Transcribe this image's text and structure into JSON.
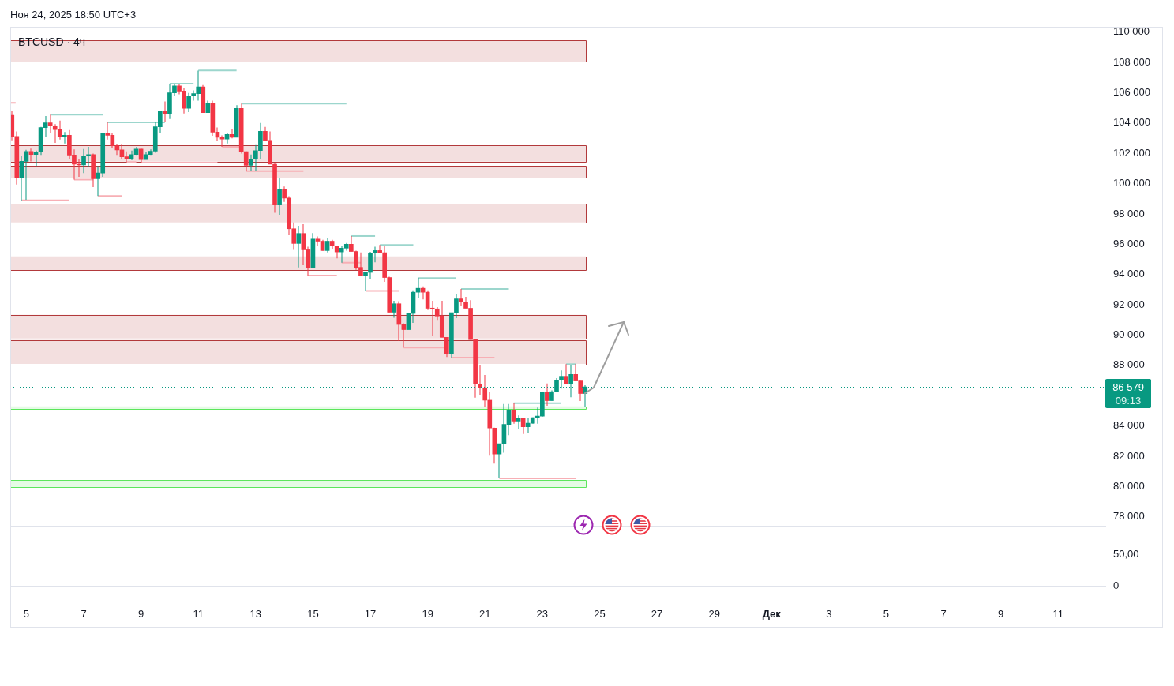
{
  "chart_data": [
    {
      "type": "candlestick",
      "title": "BTCUSD · 4ч",
      "annotations": [
        "Ноя 24, 2025 18:50 UTC+3",
        "09:13"
      ],
      "x": [
        "2025-11-04T12:00",
        "2025-11-04T16:00",
        "2025-11-04T20:00",
        "2025-11-05T00:00",
        "2025-11-05T04:00",
        "2025-11-05T08:00",
        "2025-11-05T12:00",
        "2025-11-05T16:00",
        "2025-11-05T20:00",
        "2025-11-06T00:00",
        "2025-11-06T04:00",
        "2025-11-06T08:00",
        "2025-11-06T12:00",
        "2025-11-06T16:00",
        "2025-11-06T20:00",
        "2025-11-07T00:00",
        "2025-11-07T04:00",
        "2025-11-07T08:00",
        "2025-11-07T12:00",
        "2025-11-07T16:00",
        "2025-11-07T20:00",
        "2025-11-08T00:00",
        "2025-11-08T04:00",
        "2025-11-08T08:00",
        "2025-11-08T12:00",
        "2025-11-08T16:00",
        "2025-11-08T20:00",
        "2025-11-09T00:00",
        "2025-11-09T04:00",
        "2025-11-09T08:00",
        "2025-11-09T12:00",
        "2025-11-09T16:00",
        "2025-11-09T20:00",
        "2025-11-10T00:00",
        "2025-11-10T04:00",
        "2025-11-10T08:00",
        "2025-11-10T12:00",
        "2025-11-10T16:00",
        "2025-11-10T20:00",
        "2025-11-11T00:00",
        "2025-11-11T04:00",
        "2025-11-11T08:00",
        "2025-11-11T12:00",
        "2025-11-11T16:00",
        "2025-11-11T20:00",
        "2025-11-12T00:00",
        "2025-11-12T04:00",
        "2025-11-12T08:00",
        "2025-11-12T12:00",
        "2025-11-12T16:00",
        "2025-11-12T20:00",
        "2025-11-13T00:00",
        "2025-11-13T04:00",
        "2025-11-13T08:00",
        "2025-11-13T12:00",
        "2025-11-13T16:00",
        "2025-11-13T20:00",
        "2025-11-14T00:00",
        "2025-11-14T04:00",
        "2025-11-14T08:00",
        "2025-11-14T12:00",
        "2025-11-14T16:00",
        "2025-11-14T20:00",
        "2025-11-15T00:00",
        "2025-11-15T04:00",
        "2025-11-15T08:00",
        "2025-11-15T12:00",
        "2025-11-15T16:00",
        "2025-11-15T20:00",
        "2025-11-16T00:00",
        "2025-11-16T04:00",
        "2025-11-16T08:00",
        "2025-11-16T12:00",
        "2025-11-16T16:00",
        "2025-11-16T20:00",
        "2025-11-17T00:00",
        "2025-11-17T04:00",
        "2025-11-17T08:00",
        "2025-11-17T12:00",
        "2025-11-17T16:00",
        "2025-11-17T20:00",
        "2025-11-18T00:00",
        "2025-11-18T04:00",
        "2025-11-18T08:00",
        "2025-11-18T12:00",
        "2025-11-18T16:00",
        "2025-11-18T20:00",
        "2025-11-19T00:00",
        "2025-11-19T04:00",
        "2025-11-19T08:00",
        "2025-11-19T12:00",
        "2025-11-19T16:00",
        "2025-11-19T20:00",
        "2025-11-20T00:00",
        "2025-11-20T04:00",
        "2025-11-20T08:00",
        "2025-11-20T12:00",
        "2025-11-20T16:00",
        "2025-11-20T20:00",
        "2025-11-21T00:00",
        "2025-11-21T04:00",
        "2025-11-21T08:00",
        "2025-11-21T12:00",
        "2025-11-21T16:00",
        "2025-11-21T20:00",
        "2025-11-22T00:00",
        "2025-11-22T04:00",
        "2025-11-22T08:00",
        "2025-11-22T12:00",
        "2025-11-22T16:00",
        "2025-11-22T20:00",
        "2025-11-23T00:00",
        "2025-11-23T04:00",
        "2025-11-23T08:00",
        "2025-11-23T12:00",
        "2025-11-23T16:00",
        "2025-11-23T20:00",
        "2025-11-24T00:00",
        "2025-11-24T04:00",
        "2025-11-24T08:00",
        "2025-11-24T12:00"
      ],
      "ohlc": [
        [
          104510,
          104770,
          102860,
          103110
        ],
        [
          103110,
          103450,
          99940,
          100400
        ],
        [
          100400,
          101840,
          98880,
          101470
        ],
        [
          101470,
          102230,
          98930,
          102130
        ],
        [
          102130,
          102310,
          101470,
          101920
        ],
        [
          101920,
          102180,
          101160,
          102080
        ],
        [
          102080,
          103750,
          101890,
          103700
        ],
        [
          103700,
          104460,
          103060,
          104010
        ],
        [
          104010,
          104550,
          103310,
          103820
        ],
        [
          103820,
          103920,
          102690,
          103570
        ],
        [
          103570,
          104160,
          102910,
          103110
        ],
        [
          103110,
          103400,
          102650,
          103190
        ],
        [
          103190,
          103530,
          101590,
          101890
        ],
        [
          101890,
          102260,
          100270,
          101280
        ],
        [
          101280,
          101590,
          100450,
          101230
        ],
        [
          101230,
          102280,
          100690,
          101820
        ],
        [
          101820,
          102430,
          101110,
          101920
        ],
        [
          101920,
          101980,
          99770,
          100320
        ],
        [
          100320,
          101160,
          99180,
          100700
        ],
        [
          100700,
          103330,
          100450,
          103300
        ],
        [
          103300,
          104040,
          102910,
          103190
        ],
        [
          103190,
          103330,
          102380,
          102500
        ],
        [
          102500,
          102600,
          101890,
          102230
        ],
        [
          102230,
          102570,
          101640,
          101770
        ],
        [
          101770,
          102130,
          101420,
          101620
        ],
        [
          101620,
          102180,
          101540,
          101920
        ],
        [
          101920,
          102430,
          101890,
          102280
        ],
        [
          102280,
          102300,
          101370,
          101590
        ],
        [
          101590,
          102080,
          101590,
          101920
        ],
        [
          101920,
          102260,
          101890,
          102140
        ],
        [
          102140,
          104070,
          102040,
          103750
        ],
        [
          103750,
          104770,
          103310,
          104770
        ],
        [
          104770,
          105430,
          104070,
          104630
        ],
        [
          104630,
          106580,
          104260,
          105990
        ],
        [
          105990,
          106580,
          105780,
          106450
        ],
        [
          106450,
          106580,
          105900,
          106110
        ],
        [
          106110,
          106280,
          104630,
          104970
        ],
        [
          104970,
          105990,
          104720,
          105780
        ],
        [
          105780,
          106160,
          105480,
          105940
        ],
        [
          105940,
          107460,
          105480,
          106390
        ],
        [
          106390,
          106500,
          104680,
          104680
        ],
        [
          104680,
          105480,
          104680,
          105280
        ],
        [
          105280,
          105480,
          103160,
          103400
        ],
        [
          103400,
          103700,
          102820,
          103060
        ],
        [
          103060,
          103190,
          102430,
          102940
        ],
        [
          102940,
          103330,
          102650,
          103250
        ],
        [
          103250,
          103600,
          102990,
          103060
        ],
        [
          103060,
          105180,
          103060,
          104970
        ],
        [
          104970,
          105280,
          101980,
          102110
        ],
        [
          102110,
          102130,
          100820,
          101210
        ],
        [
          101210,
          101920,
          100870,
          101620
        ],
        [
          101620,
          102550,
          100870,
          102180
        ],
        [
          102180,
          104010,
          101590,
          103450
        ],
        [
          103450,
          103750,
          102860,
          102860
        ],
        [
          102860,
          103450,
          101280,
          101280
        ],
        [
          101280,
          101330,
          98080,
          98590
        ],
        [
          98590,
          100400,
          97950,
          99590
        ],
        [
          99590,
          99810,
          98790,
          99050
        ],
        [
          99050,
          99170,
          96590,
          97020
        ],
        [
          97020,
          97440,
          95630,
          96050
        ],
        [
          96050,
          97220,
          94470,
          96710
        ],
        [
          96710,
          97320,
          94610,
          95630
        ],
        [
          95630,
          95830,
          93930,
          94470
        ],
        [
          94470,
          96730,
          94470,
          96340
        ],
        [
          96340,
          96510,
          95880,
          96200
        ],
        [
          96200,
          96290,
          95580,
          95580
        ],
        [
          95580,
          96390,
          95460,
          96200
        ],
        [
          96200,
          96290,
          95690,
          95880
        ],
        [
          95880,
          95910,
          95070,
          95490
        ],
        [
          95490,
          95910,
          94780,
          95740
        ],
        [
          95740,
          96080,
          95580,
          96000
        ],
        [
          96000,
          96540,
          95520,
          95520
        ],
        [
          95520,
          95580,
          94310,
          94470
        ],
        [
          94470,
          95460,
          93920,
          93920
        ],
        [
          93920,
          94170,
          92920,
          94140
        ],
        [
          94140,
          95490,
          93710,
          95410
        ],
        [
          95410,
          95830,
          94810,
          95580
        ],
        [
          95580,
          95950,
          95440,
          95440
        ],
        [
          95440,
          95880,
          93510,
          93800
        ],
        [
          93800,
          93850,
          91510,
          91510
        ],
        [
          91510,
          92270,
          91140,
          92070
        ],
        [
          92070,
          92240,
          89600,
          90700
        ],
        [
          90700,
          90780,
          89180,
          90360
        ],
        [
          90360,
          91430,
          90360,
          91430
        ],
        [
          91430,
          92950,
          90800,
          92830
        ],
        [
          92830,
          93760,
          92440,
          93090
        ],
        [
          93090,
          93210,
          92360,
          92830
        ],
        [
          92830,
          92950,
          91650,
          91770
        ],
        [
          91770,
          92270,
          89950,
          91730
        ],
        [
          91730,
          91850,
          91000,
          91260
        ],
        [
          91260,
          92270,
          89850,
          89850
        ],
        [
          89850,
          89850,
          88550,
          88750
        ],
        [
          88750,
          91480,
          88510,
          91480
        ],
        [
          91480,
          92700,
          91120,
          92390
        ],
        [
          92390,
          93040,
          91930,
          92190
        ],
        [
          92190,
          92530,
          91770,
          91770
        ],
        [
          91770,
          92300,
          89700,
          89700
        ],
        [
          89700,
          89730,
          85870,
          86770
        ],
        [
          86770,
          88040,
          86010,
          86520
        ],
        [
          86520,
          87360,
          85280,
          85700
        ],
        [
          85700,
          86230,
          82030,
          83860
        ],
        [
          83860,
          83890,
          81520,
          82150
        ],
        [
          82150,
          82830,
          80540,
          82830
        ],
        [
          82830,
          85450,
          82230,
          84100
        ],
        [
          84100,
          85450,
          83390,
          85040
        ],
        [
          85040,
          85500,
          84150,
          84320
        ],
        [
          84320,
          84690,
          83810,
          84490
        ],
        [
          84490,
          84490,
          83470,
          83940
        ],
        [
          83940,
          84520,
          83550,
          84180
        ],
        [
          84180,
          84570,
          84150,
          84550
        ],
        [
          84550,
          85210,
          84150,
          84650
        ],
        [
          84650,
          86230,
          84620,
          86230
        ],
        [
          86230,
          86810,
          85330,
          85670
        ],
        [
          85670,
          86350,
          85670,
          86260
        ],
        [
          86260,
          87160,
          86230,
          87030
        ],
        [
          87030,
          87670,
          86470,
          87280
        ],
        [
          87280,
          88080,
          86770,
          86770
        ],
        [
          86770,
          87990,
          85890,
          87400
        ],
        [
          87400,
          88080,
          86970,
          86970
        ],
        [
          86970,
          86970,
          85640,
          86140
        ],
        [
          86140,
          86690,
          85250,
          86579
        ]
      ],
      "colors": [
        "#f23645",
        "#f23645",
        "#089981",
        "#089981",
        "#f23645",
        "#089981",
        "#089981",
        "#089981",
        "#f23645",
        "#f23645",
        "#f23645",
        "#089981",
        "#f23645",
        "#f23645",
        "#f23645",
        "#089981",
        "#089981",
        "#f23645",
        "#089981",
        "#089981",
        "#f23645",
        "#f23645",
        "#f23645",
        "#f23645",
        "#f23645",
        "#089981",
        "#089981",
        "#f23645",
        "#089981",
        "#089981",
        "#089981",
        "#089981",
        "#f23645",
        "#089981",
        "#089981",
        "#f23645",
        "#f23645",
        "#089981",
        "#089981",
        "#089981",
        "#f23645",
        "#089981",
        "#f23645",
        "#f23645",
        "#f23645",
        "#089981",
        "#f23645",
        "#089981",
        "#f23645",
        "#f23645",
        "#089981",
        "#089981",
        "#089981",
        "#f23645",
        "#f23645",
        "#f23645",
        "#089981",
        "#f23645",
        "#f23645",
        "#f23645",
        "#089981",
        "#f23645",
        "#f23645",
        "#089981",
        "#f23645",
        "#f23645",
        "#089981",
        "#f23645",
        "#f23645",
        "#089981",
        "#089981",
        "#f23645",
        "#f23645",
        "#f23645",
        "#089981",
        "#089981",
        "#089981",
        "#f23645",
        "#f23645",
        "#f23645",
        "#089981",
        "#f23645",
        "#f23645",
        "#089981",
        "#089981",
        "#089981",
        "#f23645",
        "#f23645",
        "#f23645",
        "#f23645",
        "#f23645",
        "#f23645",
        "#089981",
        "#089981",
        "#f23645",
        "#f23645",
        "#f23645",
        "#f23645",
        "#f23645",
        "#f23645",
        "#f23645",
        "#f23645",
        "#089981",
        "#089981",
        "#089981",
        "#f23645",
        "#089981",
        "#f23645",
        "#089981",
        "#089981",
        "#089981",
        "#089981",
        "#f23645",
        "#089981",
        "#089981",
        "#089981",
        "#f23645",
        "#089981",
        "#f23645",
        "#f23645",
        "#089981"
      ],
      "series": [
        {
          "type": "line",
          "x": [
            "2025-11-04T10:30",
            "2025-11-04T15:00"
          ],
          "values": [
            105330,
            105330
          ],
          "color": "#f7afb5"
        },
        {
          "type": "line",
          "x": [
            "2025-11-05T20:00",
            "2025-11-07T16:00"
          ],
          "values": [
            104550,
            104550
          ],
          "color": "#9cd6cd"
        },
        {
          "type": "line",
          "x": [
            "2025-11-07T20:00",
            "2025-11-09T20:00"
          ],
          "values": [
            104040,
            104040
          ],
          "color": "#9cd6cd"
        },
        {
          "type": "line",
          "x": [
            "2025-11-04T20:00",
            "2025-11-06T12:00"
          ],
          "values": [
            98900,
            98900
          ],
          "color": "#f7afb5"
        },
        {
          "type": "line",
          "x": [
            "2025-11-06T16:00",
            "2025-11-07T08:00"
          ],
          "values": [
            100270,
            100270
          ],
          "color": "#f7afb5"
        },
        {
          "type": "line",
          "x": [
            "2025-11-07T12:00",
            "2025-11-08T08:00"
          ],
          "values": [
            99180,
            99180
          ],
          "color": "#f7afb5"
        },
        {
          "type": "line",
          "x": [
            "2025-11-08T12:00",
            "2025-11-08T20:00"
          ],
          "values": [
            101420,
            101420
          ],
          "color": "#f7afb5"
        },
        {
          "type": "line",
          "x": [
            "2025-11-09T00:00",
            "2025-11-11T16:00"
          ],
          "values": [
            101380,
            101380
          ],
          "color": "#f7afb5"
        },
        {
          "type": "line",
          "x": [
            "2025-11-10T00:00",
            "2025-11-10T20:00"
          ],
          "values": [
            106600,
            106600
          ],
          "color": "#9cd6cd"
        },
        {
          "type": "line",
          "x": [
            "2025-11-11T00:00",
            "2025-11-12T08:00"
          ],
          "values": [
            107470,
            107470
          ],
          "color": "#9cd6cd"
        },
        {
          "type": "line",
          "x": [
            "2025-11-11T20:00",
            "2025-11-12T12:00"
          ],
          "values": [
            102430,
            102430
          ],
          "color": "#f7afb5"
        },
        {
          "type": "line",
          "x": [
            "2025-11-12T12:00",
            "2025-11-16T04:00"
          ],
          "values": [
            105280,
            105280
          ],
          "color": "#9cd6cd"
        },
        {
          "type": "line",
          "x": [
            "2025-11-12T16:00",
            "2025-11-14T16:00"
          ],
          "values": [
            100820,
            100820
          ],
          "color": "#f7afb5"
        },
        {
          "type": "line",
          "x": [
            "2025-11-14T20:00",
            "2025-11-15T20:00"
          ],
          "values": [
            93930,
            93930
          ],
          "color": "#f7afb5"
        },
        {
          "type": "line",
          "x": [
            "2025-11-16T00:00",
            "2025-11-16T16:00"
          ],
          "values": [
            94780,
            94780
          ],
          "color": "#f7afb5"
        },
        {
          "type": "line",
          "x": [
            "2025-11-16T08:00",
            "2025-11-17T04:00"
          ],
          "values": [
            96540,
            96540
          ],
          "color": "#9cd6cd"
        },
        {
          "type": "line",
          "x": [
            "2025-11-17T08:00",
            "2025-11-18T12:00"
          ],
          "values": [
            95950,
            95950
          ],
          "color": "#9cd6cd"
        },
        {
          "type": "line",
          "x": [
            "2025-11-16T20:00",
            "2025-11-18T00:00"
          ],
          "values": [
            92920,
            92920
          ],
          "color": "#f7afb5"
        },
        {
          "type": "line",
          "x": [
            "2025-11-18T16:00",
            "2025-11-20T00:00"
          ],
          "values": [
            93760,
            93760
          ],
          "color": "#9cd6cd"
        },
        {
          "type": "line",
          "x": [
            "2025-11-18T04:00",
            "2025-11-19T16:00"
          ],
          "values": [
            89180,
            89180
          ],
          "color": "#f7afb5"
        },
        {
          "type": "line",
          "x": [
            "2025-11-20T04:00",
            "2025-11-21T20:00"
          ],
          "values": [
            93040,
            93040
          ],
          "color": "#9cd6cd"
        },
        {
          "type": "line",
          "x": [
            "2025-11-19T20:00",
            "2025-11-21T08:00"
          ],
          "values": [
            88510,
            88510
          ],
          "color": "#f7afb5"
        },
        {
          "type": "line",
          "x": [
            "2025-11-22T00:00",
            "2025-11-23T16:00"
          ],
          "values": [
            85500,
            85500
          ],
          "color": "#9cd6cd"
        },
        {
          "type": "line",
          "x": [
            "2025-11-23T20:00",
            "2025-11-24T04:00"
          ],
          "values": [
            88080,
            88080
          ],
          "color": "#9cd6cd"
        },
        {
          "type": "line",
          "x": [
            "2025-11-21T12:00",
            "2025-11-24T04:00"
          ],
          "values": [
            80540,
            80540
          ],
          "color": "#f7afb5"
        }
      ],
      "bands": [
        {
          "axis": "y",
          "from": 108020,
          "to": 109440,
          "color": "#b2393b"
        },
        {
          "axis": "y",
          "from": 101450,
          "to": 102520,
          "color": "#b2393b"
        },
        {
          "axis": "y",
          "from": 100360,
          "to": 101160,
          "color": "#b2393b"
        },
        {
          "axis": "y",
          "from": 97440,
          "to": 98670,
          "color": "#b2393b"
        },
        {
          "axis": "y",
          "from": 94290,
          "to": 95200,
          "color": "#b2393b"
        },
        {
          "axis": "y",
          "from": 89770,
          "to": 91340,
          "color": "#b2393b"
        },
        {
          "axis": "y",
          "from": 88090,
          "to": 89680,
          "color": "#b2393b"
        },
        {
          "axis": "y",
          "from": 79970,
          "to": 80420,
          "color": "#5ce65c"
        },
        {
          "axis": "y",
          "from": 85130,
          "to": 85300,
          "color": "#5ce65c"
        }
      ],
      "ref_lines": [
        {
          "axis": "y",
          "value": 86579,
          "label": "86 579",
          "color": "#089981",
          "line_style": "dotted"
        }
      ],
      "xlim": [
        "2025-11-04T10:30",
        "2025-12-12T15:30"
      ],
      "tick_labels": "y",
      "ylim": [
        77400,
        110350
      ],
      "yticks": [
        {
          "value": 78000,
          "label": "78 000"
        },
        {
          "value": 80000,
          "label": "80 000"
        },
        {
          "value": 82000,
          "label": "82 000"
        },
        {
          "value": 84000,
          "label": "84 000"
        },
        {
          "value": 88000,
          "label": "88 000"
        },
        {
          "value": 90000,
          "label": "90 000"
        },
        {
          "value": 92000,
          "label": "92 000"
        },
        {
          "value": 94000,
          "label": "94 000"
        },
        {
          "value": 96000,
          "label": "96 000"
        },
        {
          "value": 98000,
          "label": "98 000"
        },
        {
          "value": 100000,
          "label": "100 000"
        },
        {
          "value": 102000,
          "label": "102 000"
        },
        {
          "value": 104000,
          "label": "104 000"
        },
        {
          "value": 106000,
          "label": "106 000"
        },
        {
          "value": 108000,
          "label": "108 000"
        },
        {
          "value": 110000,
          "label": "110 000"
        }
      ]
    },
    {
      "type": "line",
      "xlim": [
        "2025-11-04T10:30",
        "2025-12-12T15:30"
      ],
      "xticks": [
        {
          "value": "2025-11-05",
          "label": "5"
        },
        {
          "value": "2025-11-07",
          "label": "7"
        },
        {
          "value": "2025-11-09",
          "label": "9"
        },
        {
          "value": "2025-11-11",
          "label": "11"
        },
        {
          "value": "2025-11-13",
          "label": "13"
        },
        {
          "value": "2025-11-15",
          "label": "15"
        },
        {
          "value": "2025-11-17",
          "label": "17"
        },
        {
          "value": "2025-11-19",
          "label": "19"
        },
        {
          "value": "2025-11-21",
          "label": "21"
        },
        {
          "value": "2025-11-23",
          "label": "23"
        },
        {
          "value": "2025-11-25",
          "label": "25"
        },
        {
          "value": "2025-11-27",
          "label": "27"
        },
        {
          "value": "2025-11-29",
          "label": "29"
        },
        {
          "value": "2025-12-01",
          "label": "Дек"
        },
        {
          "value": "2025-12-03",
          "label": "3"
        },
        {
          "value": "2025-12-05",
          "label": "5"
        },
        {
          "value": "2025-12-07",
          "label": "7"
        },
        {
          "value": "2025-12-09",
          "label": "9"
        },
        {
          "value": "2025-12-11",
          "label": "11"
        }
      ],
      "ylim": [
        0,
        50
      ],
      "yticks": [
        {
          "value": 50,
          "label": "50,00"
        },
        {
          "value": 0,
          "label": "0"
        }
      ]
    }
  ]
}
